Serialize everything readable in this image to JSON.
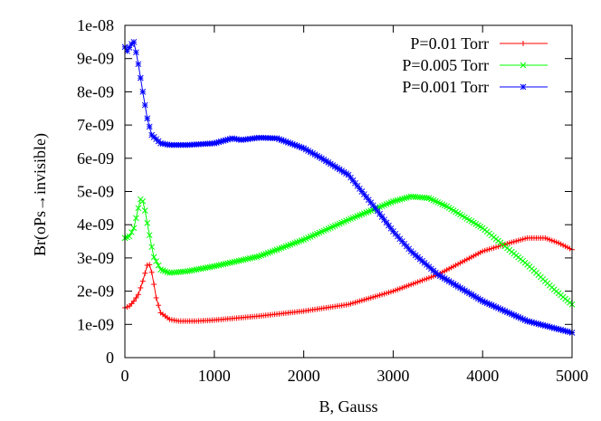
{
  "chart_data": {
    "type": "line",
    "title": "",
    "xlabel": "B, Gauss",
    "ylabel": "Br(oPs→invisible)",
    "xlim": [
      0,
      5000
    ],
    "ylim": [
      0,
      1e-08
    ],
    "x_ticks": [
      "0",
      "1000",
      "2000",
      "3000",
      "4000",
      "5000"
    ],
    "y_ticks": [
      "0",
      "1e-09",
      "2e-09",
      "3e-09",
      "4e-09",
      "5e-09",
      "6e-09",
      "7e-09",
      "8e-09",
      "9e-09",
      "1e-08"
    ],
    "grid": false,
    "legend_position": "top-right",
    "series": [
      {
        "name": "P=0.01 Torr",
        "color": "#ff0000",
        "marker": "plus",
        "points": [
          [
            0,
            1.5e-09
          ],
          [
            50,
            1.55e-09
          ],
          [
            100,
            1.7e-09
          ],
          [
            150,
            1.9e-09
          ],
          [
            200,
            2.3e-09
          ],
          [
            250,
            2.78e-09
          ],
          [
            280,
            2.8e-09
          ],
          [
            310,
            2.45e-09
          ],
          [
            350,
            1.8e-09
          ],
          [
            400,
            1.35e-09
          ],
          [
            500,
            1.15e-09
          ],
          [
            600,
            1.1e-09
          ],
          [
            800,
            1.1e-09
          ],
          [
            1000,
            1.13e-09
          ],
          [
            1500,
            1.25e-09
          ],
          [
            2000,
            1.4e-09
          ],
          [
            2500,
            1.6e-09
          ],
          [
            3000,
            2e-09
          ],
          [
            3500,
            2.5e-09
          ],
          [
            4000,
            3.2e-09
          ],
          [
            4300,
            3.45e-09
          ],
          [
            4500,
            3.6e-09
          ],
          [
            4700,
            3.6e-09
          ],
          [
            4850,
            3.45e-09
          ],
          [
            5000,
            3.25e-09
          ]
        ]
      },
      {
        "name": "P=0.005 Torr",
        "color": "#00ff00",
        "marker": "cross",
        "points": [
          [
            0,
            3.6e-09
          ],
          [
            50,
            3.65e-09
          ],
          [
            100,
            3.9e-09
          ],
          [
            150,
            4.5e-09
          ],
          [
            180,
            4.82e-09
          ],
          [
            210,
            4.65e-09
          ],
          [
            260,
            3.9e-09
          ],
          [
            320,
            3.05e-09
          ],
          [
            400,
            2.65e-09
          ],
          [
            500,
            2.55e-09
          ],
          [
            700,
            2.6e-09
          ],
          [
            1000,
            2.75e-09
          ],
          [
            1500,
            3.05e-09
          ],
          [
            2000,
            3.55e-09
          ],
          [
            2500,
            4.15e-09
          ],
          [
            3000,
            4.7e-09
          ],
          [
            3200,
            4.85e-09
          ],
          [
            3400,
            4.8e-09
          ],
          [
            3600,
            4.55e-09
          ],
          [
            4000,
            3.9e-09
          ],
          [
            4500,
            2.8e-09
          ],
          [
            4800,
            2.05e-09
          ],
          [
            5000,
            1.6e-09
          ]
        ]
      },
      {
        "name": "P=0.001 Torr",
        "color": "#0000ff",
        "marker": "star",
        "points": [
          [
            0,
            9.35e-09
          ],
          [
            30,
            9.2e-09
          ],
          [
            60,
            9.4e-09
          ],
          [
            100,
            9.5e-09
          ],
          [
            140,
            9e-09
          ],
          [
            200,
            8e-09
          ],
          [
            250,
            7.2e-09
          ],
          [
            300,
            6.7e-09
          ],
          [
            400,
            6.45e-09
          ],
          [
            500,
            6.4e-09
          ],
          [
            700,
            6.4e-09
          ],
          [
            1000,
            6.45e-09
          ],
          [
            1200,
            6.6e-09
          ],
          [
            1300,
            6.55e-09
          ],
          [
            1500,
            6.62e-09
          ],
          [
            1700,
            6.6e-09
          ],
          [
            2000,
            6.3e-09
          ],
          [
            2200,
            6e-09
          ],
          [
            2500,
            5.5e-09
          ],
          [
            2800,
            4.5e-09
          ],
          [
            3000,
            3.8e-09
          ],
          [
            3200,
            3.2e-09
          ],
          [
            3500,
            2.5e-09
          ],
          [
            4000,
            1.7e-09
          ],
          [
            4500,
            1.1e-09
          ],
          [
            5000,
            7.5e-10
          ]
        ]
      }
    ]
  }
}
